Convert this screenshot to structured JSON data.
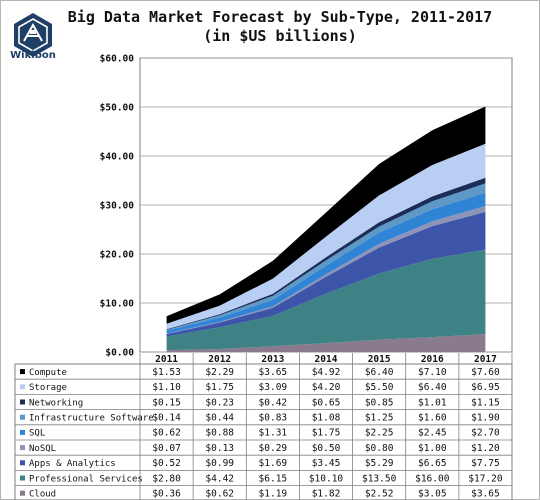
{
  "logo": {
    "text": "Wikibon"
  },
  "chart_data": {
    "type": "area",
    "stacked": true,
    "title": "Big Data Market Forecast by Sub-Type, 2011-2017",
    "subtitle": "(in $US billions)",
    "x": [
      "2011",
      "2012",
      "2013",
      "2014",
      "2015",
      "2016",
      "2017"
    ],
    "ylim": [
      0,
      60
    ],
    "yticks": [
      "$0.00",
      "$10.00",
      "$20.00",
      "$30.00",
      "$40.00",
      "$50.00",
      "$60.00"
    ],
    "grid": true,
    "series": [
      {
        "name": "Cloud",
        "color": "#8a7a8e",
        "values": [
          0.36,
          0.62,
          1.19,
          1.82,
          2.52,
          3.05,
          3.65
        ],
        "labels": [
          "$0.36",
          "$0.62",
          "$1.19",
          "$1.82",
          "$2.52",
          "$3.05",
          "$3.65"
        ]
      },
      {
        "name": "Professional Services",
        "color": "#3f8285",
        "values": [
          2.8,
          4.42,
          6.15,
          10.1,
          13.5,
          16.0,
          17.2
        ],
        "labels": [
          "$2.80",
          "$4.42",
          "$6.15",
          "$10.10",
          "$13.50",
          "$16.00",
          "$17.20"
        ]
      },
      {
        "name": "Apps & Analytics",
        "color": "#3c55a8",
        "values": [
          0.52,
          0.99,
          1.69,
          3.45,
          5.29,
          6.65,
          7.75
        ],
        "labels": [
          "$0.52",
          "$0.99",
          "$1.69",
          "$3.45",
          "$5.29",
          "$6.65",
          "$7.75"
        ]
      },
      {
        "name": "NoSQL",
        "color": "#8d94b8",
        "values": [
          0.07,
          0.13,
          0.29,
          0.5,
          0.8,
          1.0,
          1.2
        ],
        "labels": [
          "$0.07",
          "$0.13",
          "$0.29",
          "$0.50",
          "$0.80",
          "$1.00",
          "$1.20"
        ]
      },
      {
        "name": "SQL",
        "color": "#2f84d6",
        "values": [
          0.62,
          0.88,
          1.31,
          1.75,
          2.25,
          2.45,
          2.7
        ],
        "labels": [
          "$0.62",
          "$0.88",
          "$1.31",
          "$1.75",
          "$2.25",
          "$2.45",
          "$2.70"
        ]
      },
      {
        "name": "Infrastructure Software",
        "color": "#5d98c6",
        "values": [
          0.14,
          0.44,
          0.83,
          1.08,
          1.25,
          1.6,
          1.9
        ],
        "labels": [
          "$0.14",
          "$0.44",
          "$0.83",
          "$1.08",
          "$1.25",
          "$1.60",
          "$1.90"
        ]
      },
      {
        "name": "Networking",
        "color": "#1c2d58",
        "values": [
          0.15,
          0.23,
          0.42,
          0.65,
          0.85,
          1.01,
          1.15
        ],
        "labels": [
          "$0.15",
          "$0.23",
          "$0.42",
          "$0.65",
          "$0.85",
          "$1.01",
          "$1.15"
        ]
      },
      {
        "name": "Storage",
        "color": "#b8cef3",
        "values": [
          1.1,
          1.75,
          3.09,
          4.2,
          5.5,
          6.4,
          6.95
        ],
        "labels": [
          "$1.10",
          "$1.75",
          "$3.09",
          "$4.20",
          "$5.50",
          "$6.40",
          "$6.95"
        ]
      },
      {
        "name": "Compute",
        "color": "#000000",
        "values": [
          1.53,
          2.29,
          3.65,
          4.92,
          6.4,
          7.1,
          7.6
        ],
        "labels": [
          "$1.53",
          "$2.29",
          "$3.65",
          "$4.92",
          "$6.40",
          "$7.10",
          "$7.60"
        ]
      }
    ]
  }
}
